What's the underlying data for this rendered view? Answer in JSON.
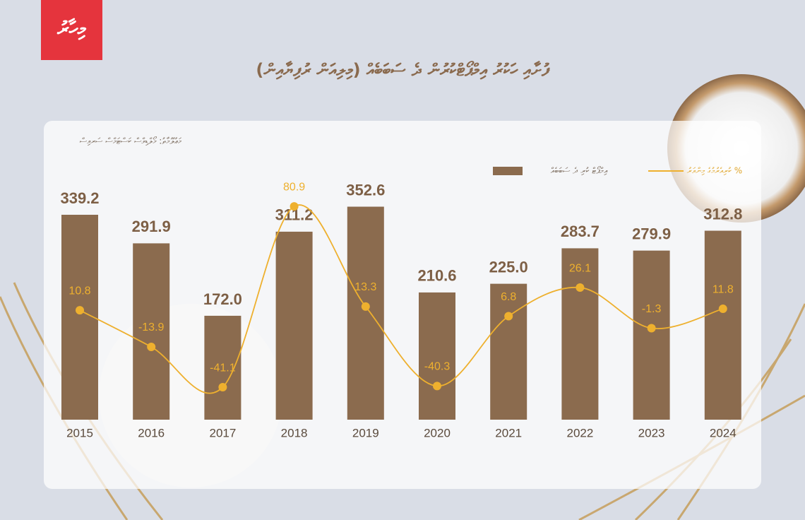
{
  "logo": "މިހާރު",
  "chart_data": {
    "type": "bar-line",
    "title": "ފުށާއި ހަކުރު އިމްޕޯޓްކުރުން ދެ ސަބަބެއް (މިލިއަން ރުފިޔާއިން)",
    "source": "މަޢުލޫމާތު: މޯލްޑިވްސް ކަސްޓަމްސް ސަރވިސް",
    "categories": [
      "2015",
      "2016",
      "2017",
      "2018",
      "2019",
      "2020",
      "2021",
      "2022",
      "2023",
      "2024"
    ],
    "series": [
      {
        "name": "އިމްޕޯޓް ކުރި ދެ ސަބަބެއް",
        "color": "#8b6b4e",
        "values": [
          339.2,
          291.9,
          172.0,
          311.2,
          352.6,
          210.6,
          225.0,
          283.7,
          279.9,
          312.8
        ],
        "value_labels": [
          "339.2",
          "291.9",
          "172.0",
          "311.2",
          "352.6",
          "210.6",
          "225.0",
          "283.7",
          "279.9",
          "312.8"
        ]
      },
      {
        "name": "ކުރިއެރުމުގެ މިންވަރު %",
        "color": "#eeb02e",
        "axis": "y2",
        "values": [
          10.8,
          -13.9,
          -41.1,
          80.9,
          13.3,
          -40.3,
          6.8,
          26.1,
          -1.3,
          11.8
        ]
      }
    ],
    "ylim": [
      0,
      400
    ],
    "y2lim": [
      -63,
      100
    ]
  }
}
